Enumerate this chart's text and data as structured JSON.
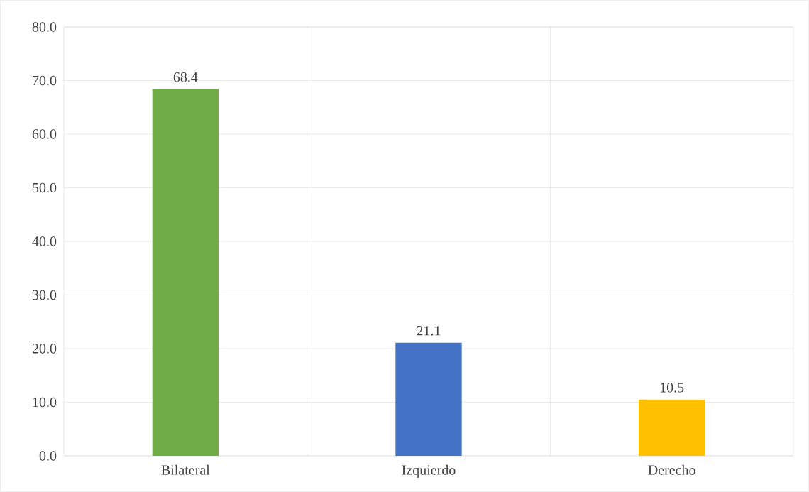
{
  "chart_data": {
    "type": "bar",
    "categories": [
      "Bilateral",
      "Izquierdo",
      "Derecho"
    ],
    "values": [
      68.4,
      21.1,
      10.5
    ],
    "colors": [
      "#70ad47",
      "#4472c4",
      "#ffc000"
    ],
    "value_labels": [
      "68.4",
      "21.1",
      "10.5"
    ],
    "ylim": [
      0,
      80
    ],
    "yticks": [
      {
        "value": 0,
        "label": "0.0"
      },
      {
        "value": 10,
        "label": "10.0"
      },
      {
        "value": 20,
        "label": "20.0"
      },
      {
        "value": 30,
        "label": "30.0"
      },
      {
        "value": 40,
        "label": "40.0"
      },
      {
        "value": 50,
        "label": "50.0"
      },
      {
        "value": 60,
        "label": "60.0"
      },
      {
        "value": 70,
        "label": "70.0"
      },
      {
        "value": 80,
        "label": "80.0"
      }
    ],
    "grid": true
  }
}
